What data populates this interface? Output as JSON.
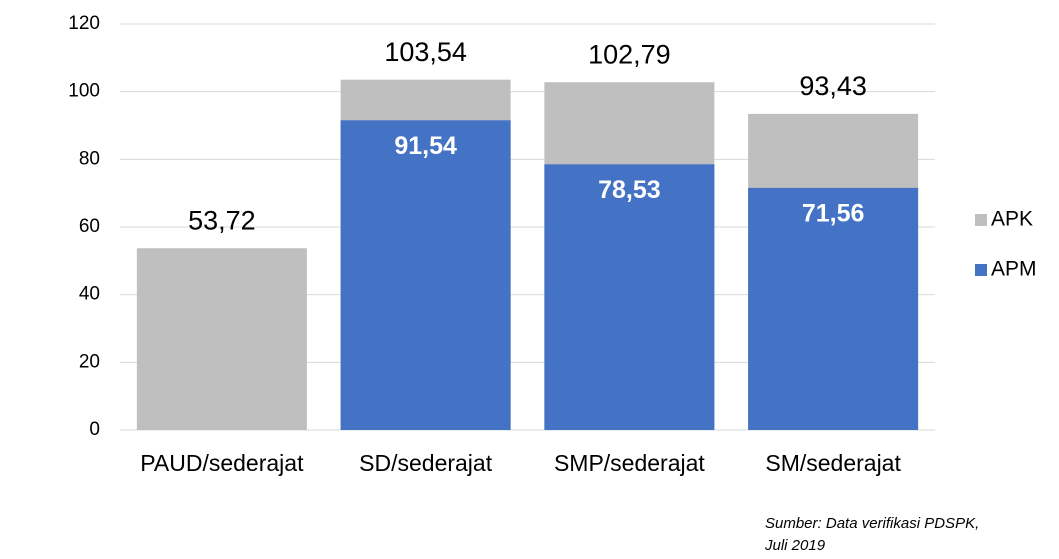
{
  "chart_data": {
    "type": "bar",
    "bar_mode": "overlap",
    "categories": [
      "PAUD/sederajat",
      "SD/sederajat",
      "SMP/sederajat",
      "SM/sederajat"
    ],
    "series": [
      {
        "name": "APK",
        "color": "#bfbfbf",
        "values": [
          53.72,
          103.54,
          102.79,
          93.43
        ],
        "value_labels": [
          "53,72",
          "103,54",
          "102,79",
          "93,43"
        ]
      },
      {
        "name": "APM",
        "color": "#4472c4",
        "values": [
          null,
          91.54,
          78.53,
          71.56
        ],
        "value_labels": [
          null,
          "91,54",
          "78,53",
          "71,56"
        ]
      }
    ],
    "ylim": [
      0,
      120
    ],
    "yticks": [
      0,
      20,
      40,
      60,
      80,
      100,
      120
    ],
    "grid": true,
    "legend": "right",
    "annotations": [
      "Sumber:  Data verifikasi PDSPK,",
      "Juli 2019"
    ]
  }
}
